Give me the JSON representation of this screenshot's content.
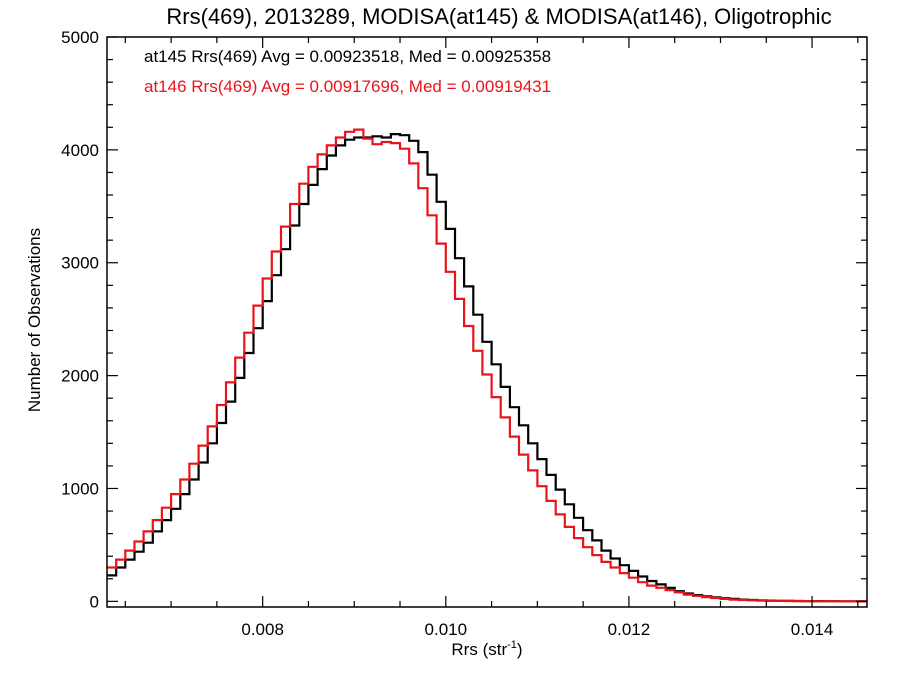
{
  "chart_data": {
    "type": "line",
    "title": "Rrs(469), 2013289, MODISA(at145) & MODISA(at146), Oligotrophic",
    "xlabel": "Rrs (str",
    "xlabel_sup": "-1",
    "xlabel_close": ")",
    "ylabel": "Number of Observations",
    "xlim": [
      0.0063,
      0.0146
    ],
    "ylim": [
      -50,
      5000
    ],
    "xticks": [
      0.008,
      0.01,
      0.012,
      0.014
    ],
    "xtick_labels": [
      "0.008",
      "0.010",
      "0.012",
      "0.014"
    ],
    "yticks": [
      0,
      1000,
      2000,
      3000,
      4000,
      5000
    ],
    "ytick_labels": [
      "0",
      "1000",
      "2000",
      "3000",
      "4000",
      "5000"
    ],
    "grid": false,
    "annotations": [
      {
        "text": "at145 Rrs(469) Avg = 0.00923518, Med = 0.00925358",
        "color": "#000000"
      },
      {
        "text": "at146 Rrs(469) Avg = 0.00917696, Med = 0.00919431",
        "color": "#e8141c"
      }
    ],
    "series": [
      {
        "color": "#000000",
        "step": true,
        "x": [
          0.0063,
          0.0064,
          0.0065,
          0.0066,
          0.0067,
          0.0068,
          0.0069,
          0.007,
          0.0071,
          0.0072,
          0.0073,
          0.0074,
          0.0075,
          0.0076,
          0.0077,
          0.0078,
          0.0079,
          0.008,
          0.0081,
          0.0082,
          0.0083,
          0.0084,
          0.0085,
          0.0086,
          0.0087,
          0.0088,
          0.0089,
          0.009,
          0.0091,
          0.0092,
          0.0093,
          0.0094,
          0.0095,
          0.0096,
          0.0097,
          0.0098,
          0.0099,
          0.01,
          0.0101,
          0.0102,
          0.0103,
          0.0104,
          0.0105,
          0.0106,
          0.0107,
          0.0108,
          0.0109,
          0.011,
          0.0111,
          0.0112,
          0.0113,
          0.0114,
          0.0115,
          0.0116,
          0.0117,
          0.0118,
          0.0119,
          0.012,
          0.0121,
          0.0122,
          0.0123,
          0.0124,
          0.0125,
          0.0126,
          0.0127,
          0.0128,
          0.0129,
          0.013,
          0.0131,
          0.0132,
          0.0133,
          0.0134,
          0.0135,
          0.0136,
          0.0137,
          0.0138,
          0.0139,
          0.014,
          0.0141,
          0.0142,
          0.0143,
          0.0144,
          0.0145
        ],
        "y": [
          230,
          300,
          370,
          440,
          520,
          620,
          720,
          820,
          950,
          1080,
          1230,
          1400,
          1580,
          1770,
          1980,
          2200,
          2420,
          2660,
          2890,
          3120,
          3330,
          3520,
          3690,
          3830,
          3950,
          4040,
          4090,
          4110,
          4110,
          4120,
          4110,
          4140,
          4130,
          4080,
          3980,
          3780,
          3540,
          3300,
          3040,
          2790,
          2540,
          2300,
          2100,
          1900,
          1720,
          1560,
          1400,
          1260,
          1120,
          990,
          860,
          740,
          630,
          540,
          450,
          380,
          320,
          270,
          220,
          180,
          150,
          120,
          90,
          70,
          55,
          45,
          35,
          28,
          22,
          16,
          12,
          9,
          7,
          5,
          4,
          3,
          2,
          2,
          1,
          1,
          0,
          0,
          0
        ]
      },
      {
        "color": "#e8141c",
        "step": true,
        "x": [
          0.0063,
          0.0064,
          0.0065,
          0.0066,
          0.0067,
          0.0068,
          0.0069,
          0.007,
          0.0071,
          0.0072,
          0.0073,
          0.0074,
          0.0075,
          0.0076,
          0.0077,
          0.0078,
          0.0079,
          0.008,
          0.0081,
          0.0082,
          0.0083,
          0.0084,
          0.0085,
          0.0086,
          0.0087,
          0.0088,
          0.0089,
          0.009,
          0.0091,
          0.0092,
          0.0093,
          0.0094,
          0.0095,
          0.0096,
          0.0097,
          0.0098,
          0.0099,
          0.01,
          0.0101,
          0.0102,
          0.0103,
          0.0104,
          0.0105,
          0.0106,
          0.0107,
          0.0108,
          0.0109,
          0.011,
          0.0111,
          0.0112,
          0.0113,
          0.0114,
          0.0115,
          0.0116,
          0.0117,
          0.0118,
          0.0119,
          0.012,
          0.0121,
          0.0122,
          0.0123,
          0.0124,
          0.0125,
          0.0126,
          0.0127,
          0.0128,
          0.0129,
          0.013,
          0.0131,
          0.0132,
          0.0133,
          0.0134,
          0.0135,
          0.0136,
          0.0137,
          0.0138,
          0.0139,
          0.014,
          0.0141,
          0.0142,
          0.0143,
          0.0144,
          0.0145
        ],
        "y": [
          300,
          370,
          450,
          530,
          620,
          720,
          830,
          950,
          1080,
          1220,
          1380,
          1550,
          1740,
          1940,
          2160,
          2380,
          2620,
          2860,
          3100,
          3320,
          3520,
          3700,
          3850,
          3960,
          4040,
          4110,
          4160,
          4180,
          4100,
          4050,
          4070,
          4060,
          4010,
          3880,
          3660,
          3420,
          3170,
          2920,
          2680,
          2440,
          2220,
          2010,
          1810,
          1630,
          1460,
          1300,
          1160,
          1020,
          890,
          770,
          660,
          560,
          480,
          410,
          350,
          300,
          250,
          210,
          170,
          140,
          120,
          100,
          80,
          60,
          48,
          38,
          30,
          22,
          16,
          12,
          9,
          7,
          5,
          4,
          3,
          2,
          2,
          1,
          1,
          1,
          0,
          0,
          0
        ]
      }
    ]
  }
}
